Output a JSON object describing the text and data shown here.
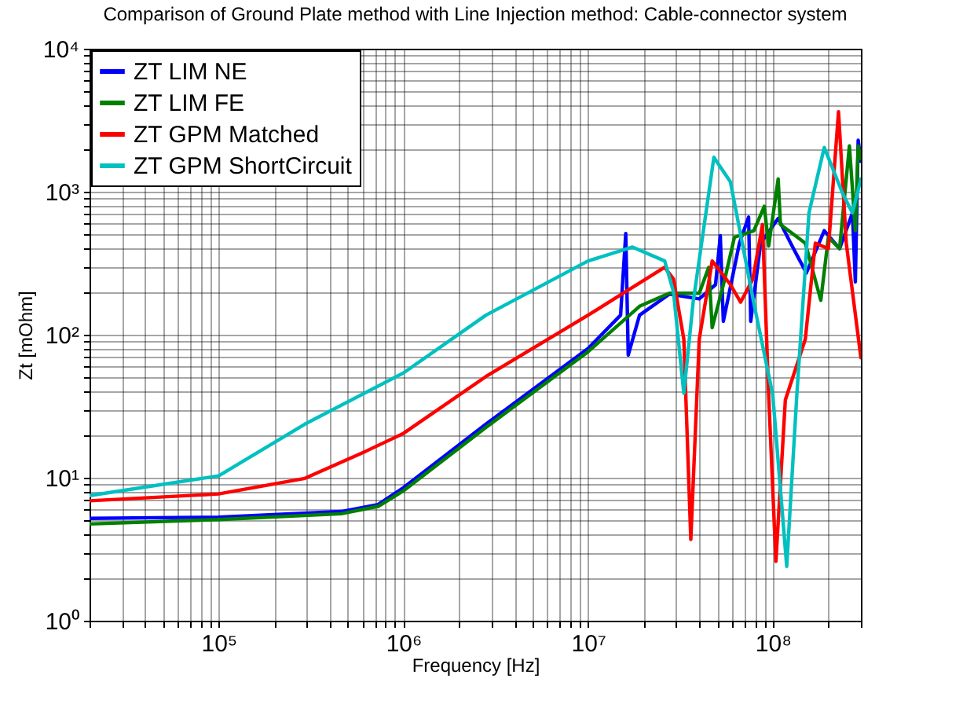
{
  "chart_data": {
    "type": "line",
    "title": "Comparison of Ground Plate method with Line Injection method: Cable-connector system",
    "xlabel": "Frequency [Hz]",
    "ylabel": "Zt [mOhm]",
    "log": "xy",
    "grid": true,
    "legend": "top left",
    "line_style": "solid",
    "marker": "none",
    "xlim": [
      20000,
      300000000
    ],
    "ylim": [
      1,
      10000
    ],
    "xticks": [
      {
        "value": 20000,
        "label": null
      },
      {
        "value": 30000,
        "label": null
      },
      {
        "value": 40000,
        "label": null
      },
      {
        "value": 50000,
        "label": null
      },
      {
        "value": 60000,
        "label": null
      },
      {
        "value": 70000,
        "label": null
      },
      {
        "value": 80000,
        "label": null
      },
      {
        "value": 90000,
        "label": null
      },
      {
        "value": 100000,
        "label": "10⁵"
      },
      {
        "value": 200000,
        "label": null
      },
      {
        "value": 300000,
        "label": null
      },
      {
        "value": 400000,
        "label": null
      },
      {
        "value": 500000,
        "label": null
      },
      {
        "value": 600000,
        "label": null
      },
      {
        "value": 700000,
        "label": null
      },
      {
        "value": 800000,
        "label": null
      },
      {
        "value": 900000,
        "label": null
      },
      {
        "value": 1000000,
        "label": "10⁶"
      },
      {
        "value": 2000000,
        "label": null
      },
      {
        "value": 3000000,
        "label": null
      },
      {
        "value": 4000000,
        "label": null
      },
      {
        "value": 5000000,
        "label": null
      },
      {
        "value": 6000000,
        "label": null
      },
      {
        "value": 7000000,
        "label": null
      },
      {
        "value": 8000000,
        "label": null
      },
      {
        "value": 9000000,
        "label": null
      },
      {
        "value": 10000000,
        "label": "10⁷"
      },
      {
        "value": 20000000,
        "label": null
      },
      {
        "value": 30000000,
        "label": null
      },
      {
        "value": 40000000,
        "label": null
      },
      {
        "value": 50000000,
        "label": null
      },
      {
        "value": 60000000,
        "label": null
      },
      {
        "value": 70000000,
        "label": null
      },
      {
        "value": 80000000,
        "label": null
      },
      {
        "value": 90000000,
        "label": null
      },
      {
        "value": 100000000,
        "label": "10⁸"
      },
      {
        "value": 200000000,
        "label": null
      },
      {
        "value": 300000000,
        "label": null
      }
    ],
    "yticks": [
      {
        "value": 1,
        "label": "10⁰"
      },
      {
        "value": 2,
        "label": null
      },
      {
        "value": 3,
        "label": null
      },
      {
        "value": 4,
        "label": null
      },
      {
        "value": 5,
        "label": null
      },
      {
        "value": 6,
        "label": null
      },
      {
        "value": 7,
        "label": null
      },
      {
        "value": 8,
        "label": null
      },
      {
        "value": 9,
        "label": null
      },
      {
        "value": 10,
        "label": "10¹"
      },
      {
        "value": 20,
        "label": null
      },
      {
        "value": 30,
        "label": null
      },
      {
        "value": 40,
        "label": null
      },
      {
        "value": 50,
        "label": null
      },
      {
        "value": 60,
        "label": null
      },
      {
        "value": 70,
        "label": null
      },
      {
        "value": 80,
        "label": null
      },
      {
        "value": 90,
        "label": null
      },
      {
        "value": 100,
        "label": "10²"
      },
      {
        "value": 200,
        "label": null
      },
      {
        "value": 300,
        "label": null
      },
      {
        "value": 400,
        "label": null
      },
      {
        "value": 500,
        "label": null
      },
      {
        "value": 600,
        "label": null
      },
      {
        "value": 700,
        "label": null
      },
      {
        "value": 800,
        "label": null
      },
      {
        "value": 900,
        "label": null
      },
      {
        "value": 1000,
        "label": "10³"
      },
      {
        "value": 2000,
        "label": null
      },
      {
        "value": 3000,
        "label": null
      },
      {
        "value": 4000,
        "label": null
      },
      {
        "value": 5000,
        "label": null
      },
      {
        "value": 6000,
        "label": null
      },
      {
        "value": 7000,
        "label": null
      },
      {
        "value": 8000,
        "label": null
      },
      {
        "value": 9000,
        "label": null
      },
      {
        "value": 10000,
        "label": "10⁴"
      }
    ],
    "series": [
      {
        "name": "ZT LIM NE",
        "color": "#0000ff",
        "x": [
          20000,
          100000,
          460000,
          730000,
          1000000,
          2800000,
          10000000,
          15000000,
          16000000,
          16500000,
          19000000,
          27500000,
          40000000,
          49000000,
          52000000,
          54000000,
          66000000,
          74000000,
          76000000,
          86000000,
          107000000,
          125000000,
          152000000,
          190000000,
          230000000,
          270000000,
          280000000,
          290000000,
          300000000
        ],
        "values": [
          5.2,
          5.3,
          5.8,
          6.5,
          8.5,
          23.7,
          80,
          137,
          510,
          72,
          137,
          192,
          178,
          224,
          493,
          124,
          437,
          665,
          124,
          437,
          650,
          437,
          270,
          534,
          400,
          710,
          234,
          2290,
          1630
        ]
      },
      {
        "name": "ZT LIM FE",
        "color": "#008000",
        "x": [
          20000,
          100000,
          460000,
          730000,
          1000000,
          2800000,
          10000000,
          19000000,
          27500000,
          40000000,
          45000000,
          47000000,
          55000000,
          62000000,
          79000000,
          90000000,
          95000000,
          107000000,
          110000000,
          150000000,
          182000000,
          200000000,
          230000000,
          260000000,
          280000000,
          290000000,
          300000000
        ],
        "values": [
          4.75,
          5.1,
          5.6,
          6.3,
          8.1,
          22.5,
          76,
          158,
          195,
          195,
          296,
          112,
          245,
          480,
          534,
          790,
          417,
          1230,
          590,
          437,
          174,
          480,
          400,
          2090,
          534,
          2090,
          1700
        ]
      },
      {
        "name": "ZT GPM Matched",
        "color": "#ff0000",
        "x": [
          20000,
          100000,
          293000,
          625000,
          1000000,
          2800000,
          10000000,
          16000000,
          26000000,
          29000000,
          33000000,
          36000000,
          40000000,
          47000000,
          59000000,
          67000000,
          78000000,
          88000000,
          95000000,
          104000000,
          117000000,
          150000000,
          170000000,
          200000000,
          227000000,
          250000000,
          300000000
        ],
        "values": [
          6.9,
          7.7,
          9.9,
          15.3,
          20.4,
          51,
          137,
          200,
          296,
          245,
          93,
          3.7,
          93,
          328,
          224,
          169,
          245,
          590,
          38,
          2.6,
          35,
          93,
          437,
          400,
          3630,
          437,
          69
        ]
      },
      {
        "name": "ZT GPM ShortCircuit",
        "color": "#00c0c0",
        "x": [
          20000,
          100000,
          293000,
          1000000,
          2800000,
          10000000,
          17400000,
          26000000,
          29000000,
          33000000,
          37000000,
          48000000,
          59000000,
          79000000,
          100000000,
          119000000,
          135000000,
          157000000,
          190000000,
          240000000,
          270000000,
          300000000
        ],
        "values": [
          7.5,
          10.3,
          23.7,
          54,
          137,
          328,
          410,
          328,
          200,
          39,
          166,
          1740,
          1170,
          166,
          38,
          2.4,
          38,
          710,
          2040,
          960,
          710,
          1230
        ]
      }
    ]
  }
}
